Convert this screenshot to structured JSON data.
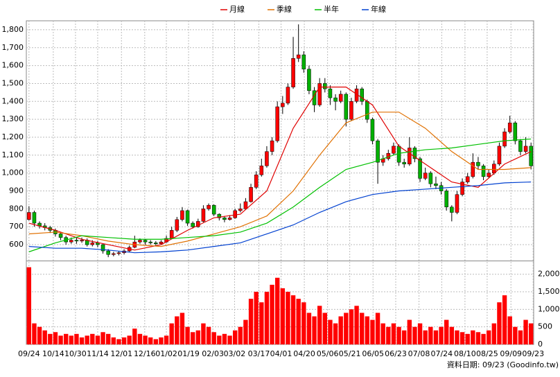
{
  "chart_data": {
    "type": "candlestick",
    "legend": [
      {
        "name": "月線",
        "color": "#e00000"
      },
      {
        "name": "季線",
        "color": "#e07000"
      },
      {
        "name": "半年",
        "color": "#00c000"
      },
      {
        "name": "年線",
        "color": "#0040d0"
      }
    ],
    "up_color": "#ff0000",
    "down_color": "#00b000",
    "volume_color": "#ff0000",
    "ylim": [
      515,
      1850
    ],
    "yticks": [
      600,
      700,
      800,
      900,
      {
        "value": 1000,
        "label": "1,000"
      },
      {
        "value": 1100,
        "label": "1,100"
      },
      {
        "value": 1200,
        "label": "1,200"
      },
      {
        "value": 1300,
        "label": "1,300"
      },
      {
        "value": 1400,
        "label": "1,400"
      },
      {
        "value": 1500,
        "label": "1,500"
      },
      {
        "value": 1600,
        "label": "1,600"
      },
      {
        "value": 1700,
        "label": "1,700"
      },
      {
        "value": 1800,
        "label": "1,800"
      }
    ],
    "volume_lim": [
      0,
      2350
    ],
    "volume_ticks": [
      0,
      500,
      {
        "value": 1000,
        "label": "1,000"
      },
      {
        "value": 1500,
        "label": "1,500"
      },
      {
        "value": 2000,
        "label": "2,000"
      }
    ],
    "xlim": [
      0,
      96
    ],
    "xticks": [
      {
        "value": 0,
        "label": "09/24"
      },
      {
        "value": 4.6,
        "label": "10/14"
      },
      {
        "value": 8.8,
        "label": "10/30"
      },
      {
        "value": 13,
        "label": "11/14"
      },
      {
        "value": 17.5,
        "label": "12/01"
      },
      {
        "value": 21.9,
        "label": "12/16"
      },
      {
        "value": 26,
        "label": "01/02"
      },
      {
        "value": 30.2,
        "label": "01/19"
      },
      {
        "value": 34.8,
        "label": "02/03"
      },
      {
        "value": 38.9,
        "label": "03/02"
      },
      {
        "value": 43.5,
        "label": "03/17"
      },
      {
        "value": 47.7,
        "label": "04/01"
      },
      {
        "value": 52.1,
        "label": "04/20"
      },
      {
        "value": 56.5,
        "label": "05/06"
      },
      {
        "value": 60.7,
        "label": "05/21"
      },
      {
        "value": 65.1,
        "label": "06/05"
      },
      {
        "value": 69.4,
        "label": "06/23"
      },
      {
        "value": 73.8,
        "label": "07/08"
      },
      {
        "value": 78.1,
        "label": "07/24"
      },
      {
        "value": 82.5,
        "label": "08/10"
      },
      {
        "value": 86.7,
        "label": "08/25"
      },
      {
        "value": 91.2,
        "label": "09/09"
      },
      {
        "value": 95.4,
        "label": "09/23"
      }
    ],
    "ohlc": [
      [
        740,
        815,
        735,
        780
      ],
      [
        780,
        790,
        700,
        720
      ],
      [
        720,
        730,
        690,
        705
      ],
      [
        705,
        720,
        680,
        695
      ],
      [
        695,
        705,
        665,
        680
      ],
      [
        680,
        690,
        645,
        660
      ],
      [
        660,
        670,
        625,
        640
      ],
      [
        640,
        650,
        600,
        615
      ],
      [
        615,
        640,
        605,
        625
      ],
      [
        625,
        640,
        605,
        620
      ],
      [
        620,
        640,
        610,
        625
      ],
      [
        625,
        635,
        590,
        600
      ],
      [
        600,
        625,
        590,
        610
      ],
      [
        610,
        620,
        585,
        600
      ],
      [
        600,
        605,
        550,
        565
      ],
      [
        565,
        575,
        530,
        545
      ],
      [
        545,
        560,
        535,
        550
      ],
      [
        550,
        565,
        540,
        555
      ],
      [
        555,
        575,
        545,
        565
      ],
      [
        565,
        595,
        560,
        585
      ],
      [
        585,
        650,
        580,
        615
      ],
      [
        615,
        635,
        605,
        625
      ],
      [
        625,
        630,
        600,
        615
      ],
      [
        615,
        625,
        600,
        610
      ],
      [
        610,
        620,
        595,
        605
      ],
      [
        605,
        625,
        600,
        615
      ],
      [
        615,
        650,
        610,
        635
      ],
      [
        635,
        700,
        630,
        680
      ],
      [
        680,
        755,
        670,
        740
      ],
      [
        740,
        810,
        730,
        790
      ],
      [
        790,
        795,
        705,
        720
      ],
      [
        720,
        730,
        690,
        700
      ],
      [
        700,
        745,
        695,
        730
      ],
      [
        730,
        820,
        725,
        800
      ],
      [
        800,
        830,
        790,
        820
      ],
      [
        820,
        825,
        760,
        770
      ],
      [
        770,
        775,
        735,
        750
      ],
      [
        750,
        760,
        725,
        740
      ],
      [
        740,
        765,
        735,
        750
      ],
      [
        750,
        800,
        745,
        790
      ],
      [
        790,
        830,
        780,
        800
      ],
      [
        800,
        860,
        795,
        840
      ],
      [
        840,
        940,
        835,
        920
      ],
      [
        920,
        1010,
        910,
        990
      ],
      [
        990,
        1080,
        980,
        1040
      ],
      [
        1040,
        1150,
        1030,
        1120
      ],
      [
        1120,
        1200,
        1100,
        1180
      ],
      [
        1180,
        1400,
        1170,
        1370
      ],
      [
        1370,
        1430,
        1330,
        1390
      ],
      [
        1390,
        1500,
        1380,
        1480
      ],
      [
        1480,
        1760,
        1470,
        1640
      ],
      [
        1640,
        1830,
        1620,
        1660
      ],
      [
        1660,
        1680,
        1560,
        1580
      ],
      [
        1580,
        1600,
        1440,
        1460
      ],
      [
        1460,
        1480,
        1340,
        1380
      ],
      [
        1380,
        1530,
        1370,
        1500
      ],
      [
        1500,
        1530,
        1450,
        1470
      ],
      [
        1470,
        1490,
        1380,
        1420
      ],
      [
        1420,
        1440,
        1350,
        1400
      ],
      [
        1400,
        1460,
        1390,
        1440
      ],
      [
        1440,
        1450,
        1260,
        1300
      ],
      [
        1300,
        1420,
        1290,
        1400
      ],
      [
        1400,
        1490,
        1390,
        1470
      ],
      [
        1470,
        1480,
        1380,
        1400
      ],
      [
        1400,
        1410,
        1280,
        1300
      ],
      [
        1300,
        1310,
        1160,
        1180
      ],
      [
        1180,
        1190,
        940,
        1060
      ],
      [
        1060,
        1100,
        1040,
        1080
      ],
      [
        1080,
        1130,
        1070,
        1110
      ],
      [
        1110,
        1170,
        1100,
        1150
      ],
      [
        1150,
        1160,
        1040,
        1060
      ],
      [
        1060,
        1080,
        1030,
        1050
      ],
      [
        1050,
        1200,
        1040,
        1140
      ],
      [
        1140,
        1150,
        1060,
        1080
      ],
      [
        1080,
        1090,
        950,
        970
      ],
      [
        970,
        1030,
        960,
        1000
      ],
      [
        1000,
        1010,
        920,
        940
      ],
      [
        940,
        980,
        910,
        930
      ],
      [
        930,
        950,
        880,
        900
      ],
      [
        900,
        910,
        790,
        810
      ],
      [
        810,
        820,
        730,
        780
      ],
      [
        780,
        900,
        770,
        880
      ],
      [
        880,
        970,
        870,
        950
      ],
      [
        950,
        1000,
        940,
        980
      ],
      [
        980,
        1110,
        970,
        1060
      ],
      [
        1060,
        1090,
        1020,
        1040
      ],
      [
        1040,
        1050,
        960,
        980
      ],
      [
        980,
        1020,
        970,
        1000
      ],
      [
        1000,
        1070,
        990,
        1050
      ],
      [
        1050,
        1170,
        1040,
        1150
      ],
      [
        1150,
        1250,
        1140,
        1230
      ],
      [
        1230,
        1320,
        1220,
        1280
      ],
      [
        1280,
        1290,
        1160,
        1180
      ],
      [
        1180,
        1190,
        1100,
        1120
      ],
      [
        1120,
        1200,
        1110,
        1150
      ],
      [
        1150,
        1170,
        1020,
        1040
      ]
    ],
    "volume": [
      2200,
      600,
      500,
      400,
      300,
      350,
      250,
      300,
      250,
      300,
      200,
      250,
      300,
      250,
      350,
      300,
      200,
      150,
      200,
      250,
      450,
      300,
      250,
      200,
      150,
      200,
      250,
      600,
      800,
      900,
      500,
      350,
      400,
      600,
      500,
      350,
      250,
      300,
      250,
      400,
      500,
      700,
      1300,
      1500,
      1200,
      1500,
      1700,
      1900,
      1600,
      1500,
      1400,
      1300,
      1200,
      900,
      800,
      1100,
      900,
      700,
      600,
      800,
      900,
      1000,
      1100,
      900,
      800,
      700,
      900,
      600,
      500,
      600,
      500,
      400,
      700,
      500,
      600,
      400,
      500,
      400,
      500,
      700,
      500,
      400,
      350,
      300,
      400,
      350,
      300,
      400,
      600,
      1200,
      1400,
      800,
      500,
      400,
      700,
      600
    ],
    "ma_x": [
      0,
      5,
      10,
      15,
      20,
      25,
      30,
      35,
      40,
      45,
      50,
      55,
      60,
      65,
      70,
      75,
      80,
      85,
      90,
      95
    ],
    "ma_series": [
      {
        "values": [
          720,
          680,
          630,
          600,
          570,
          600,
          680,
          750,
          770,
          900,
          1250,
          1480,
          1480,
          1380,
          1150,
          1050,
          950,
          920,
          1050,
          1120
        ]
      },
      {
        "values": [
          660,
          670,
          650,
          620,
          600,
          590,
          620,
          660,
          700,
          760,
          900,
          1100,
          1280,
          1340,
          1340,
          1250,
          1120,
          1020,
          1020,
          1030
        ]
      },
      {
        "values": [
          560,
          610,
          650,
          640,
          630,
          630,
          640,
          650,
          670,
          720,
          810,
          920,
          1020,
          1060,
          1110,
          1130,
          1140,
          1160,
          1180,
          1190
        ]
      },
      {
        "values": [
          590,
          580,
          580,
          570,
          555,
          560,
          570,
          590,
          610,
          660,
          710,
          780,
          840,
          880,
          900,
          910,
          920,
          930,
          945,
          950
        ]
      }
    ],
    "footer": "資料日期: 09/23 (Goodinfo.tw)"
  }
}
